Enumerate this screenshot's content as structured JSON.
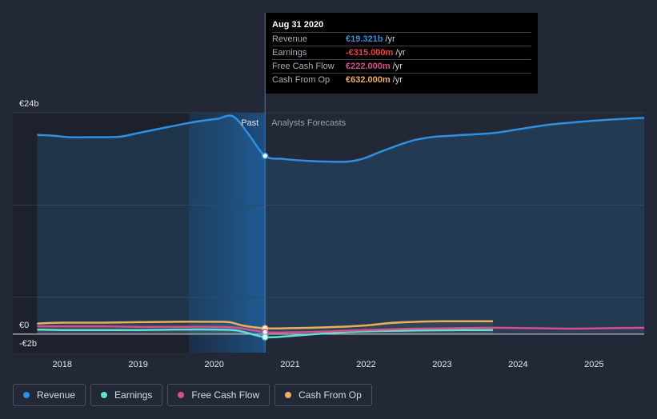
{
  "chart_data": {
    "type": "line",
    "y_labels": {
      "top": "€24b",
      "zero": "€0",
      "bottom": "-€2b"
    },
    "ylim": [
      -2,
      24
    ],
    "x_ticks": [
      2018,
      2019,
      2020,
      2021,
      2022,
      2023,
      2024,
      2025
    ],
    "xlim": [
      2017.35,
      2025.66
    ],
    "past_label": "Past",
    "forecast_label": "Analysts Forecasts",
    "divider_x": 2020.67,
    "highlight_start_x": 2019.67,
    "series": [
      {
        "name": "Revenue",
        "color": "#2f8fe0",
        "x": [
          2017.67,
          2017.9,
          2018.1,
          2018.4,
          2018.75,
          2019.0,
          2019.3,
          2019.67,
          2019.9,
          2020.05,
          2020.25,
          2020.45,
          2020.67,
          2020.9,
          2021.2,
          2021.5,
          2021.75,
          2021.95,
          2022.2,
          2022.5,
          2022.67,
          2022.9,
          2023.2,
          2023.67,
          2024.0,
          2024.4,
          2024.8,
          2025.2,
          2025.66
        ],
        "y": [
          21.6,
          21.5,
          21.35,
          21.35,
          21.4,
          21.8,
          22.3,
          22.9,
          23.2,
          23.35,
          23.6,
          21.7,
          19.321,
          19.0,
          18.8,
          18.7,
          18.7,
          19.0,
          19.8,
          20.7,
          21.1,
          21.4,
          21.55,
          21.8,
          22.2,
          22.7,
          23.0,
          23.25,
          23.45
        ]
      },
      {
        "name": "Earnings",
        "color": "#5fe0d2",
        "x": [
          2017.67,
          2018.0,
          2018.5,
          2019.0,
          2019.5,
          2020.0,
          2020.3,
          2020.67,
          2021.0,
          2021.4,
          2021.8,
          2022.2,
          2022.67,
          2023.2,
          2023.67
        ],
        "y": [
          0.5,
          0.45,
          0.45,
          0.45,
          0.5,
          0.5,
          0.4,
          -0.315,
          -0.2,
          0.05,
          0.25,
          0.35,
          0.4,
          0.45,
          0.45
        ]
      },
      {
        "name": "Free Cash Flow",
        "color": "#d1508e",
        "x": [
          2017.67,
          2018.0,
          2018.5,
          2019.0,
          2019.5,
          2020.0,
          2020.3,
          2020.67,
          2021.0,
          2021.5,
          2022.0,
          2022.67,
          2023.2,
          2023.67,
          2024.2,
          2024.7,
          2025.2,
          2025.66
        ],
        "y": [
          0.85,
          0.85,
          0.85,
          0.8,
          0.8,
          0.8,
          0.7,
          0.222,
          0.2,
          0.3,
          0.45,
          0.6,
          0.65,
          0.7,
          0.65,
          0.6,
          0.65,
          0.7
        ]
      },
      {
        "name": "Cash From Op",
        "color": "#e8b05c",
        "x": [
          2017.67,
          2018.0,
          2018.5,
          2019.0,
          2019.5,
          2020.0,
          2020.2,
          2020.4,
          2020.67,
          2021.0,
          2021.5,
          2022.0,
          2022.3,
          2022.67,
          2023.0,
          2023.67
        ],
        "y": [
          1.15,
          1.25,
          1.25,
          1.3,
          1.35,
          1.35,
          1.3,
          0.9,
          0.632,
          0.65,
          0.75,
          0.95,
          1.2,
          1.35,
          1.4,
          1.4
        ]
      }
    ]
  },
  "tooltip": {
    "date": "Aug 31 2020",
    "rows": [
      {
        "label": "Revenue",
        "value": "€19.321b",
        "unit": "/yr",
        "color": "#2f8fe0"
      },
      {
        "label": "Earnings",
        "value": "-€315.000m",
        "unit": "/yr",
        "color": "#e8433c"
      },
      {
        "label": "Free Cash Flow",
        "value": "€222.000m",
        "unit": "/yr",
        "color": "#d1508e"
      },
      {
        "label": "Cash From Op",
        "value": "€632.000m",
        "unit": "/yr",
        "color": "#e8b05c"
      }
    ]
  },
  "legend": [
    {
      "label": "Revenue",
      "color": "#2f8fe0"
    },
    {
      "label": "Earnings",
      "color": "#5fe0d2"
    },
    {
      "label": "Free Cash Flow",
      "color": "#d1508e"
    },
    {
      "label": "Cash From Op",
      "color": "#e8b05c"
    }
  ]
}
